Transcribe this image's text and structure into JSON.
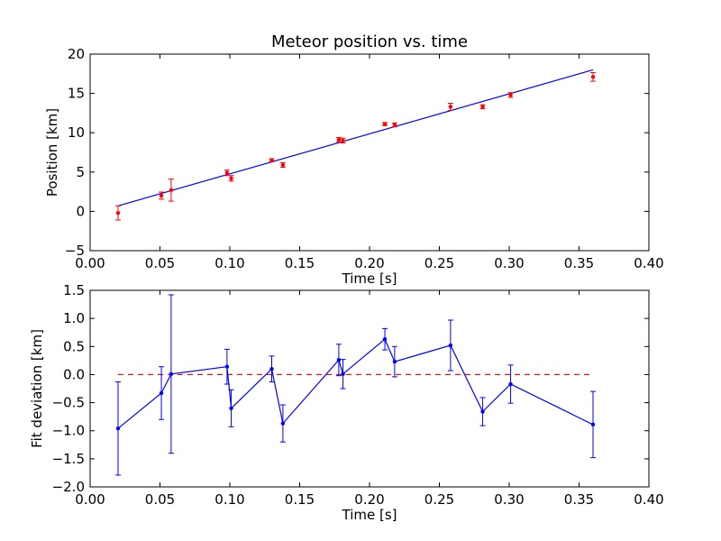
{
  "chart_data": [
    {
      "type": "scatter",
      "title": "Meteor position vs. time",
      "xlabel": "Time [s]",
      "ylabel": "Position [km]",
      "xlim": [
        0.0,
        0.4
      ],
      "ylim": [
        -5,
        20
      ],
      "xticks": [
        "0.00",
        "0.05",
        "0.10",
        "0.15",
        "0.20",
        "0.25",
        "0.30",
        "0.35",
        "0.40"
      ],
      "yticks": [
        "−5",
        "0",
        "5",
        "10",
        "15",
        "20"
      ],
      "xtick_values": [
        0.0,
        0.05,
        0.1,
        0.15,
        0.2,
        0.25,
        0.3,
        0.35,
        0.4
      ],
      "ytick_values": [
        -5,
        0,
        5,
        10,
        15,
        20
      ],
      "grid": false,
      "fit_line": {
        "x": [
          0.02,
          0.36
        ],
        "y": [
          0.7,
          18.0
        ],
        "color": "#0000ff"
      },
      "series": [
        {
          "marker_color": "#ff0000",
          "points": [
            {
              "x": 0.02,
              "y": -0.2,
              "err": 0.9
            },
            {
              "x": 0.051,
              "y": 2.0,
              "err": 0.45
            },
            {
              "x": 0.058,
              "y": 2.7,
              "err": 1.4
            },
            {
              "x": 0.098,
              "y": 4.9,
              "err": 0.35
            },
            {
              "x": 0.101,
              "y": 4.2,
              "err": 0.35
            },
            {
              "x": 0.13,
              "y": 6.5,
              "err": 0.2
            },
            {
              "x": 0.138,
              "y": 5.9,
              "err": 0.3
            },
            {
              "x": 0.178,
              "y": 9.1,
              "err": 0.3
            },
            {
              "x": 0.181,
              "y": 9.0,
              "err": 0.3
            },
            {
              "x": 0.211,
              "y": 11.1,
              "err": 0.2
            },
            {
              "x": 0.218,
              "y": 11.0,
              "err": 0.25
            },
            {
              "x": 0.258,
              "y": 13.3,
              "err": 0.45
            },
            {
              "x": 0.281,
              "y": 13.3,
              "err": 0.25
            },
            {
              "x": 0.301,
              "y": 14.8,
              "err": 0.3
            },
            {
              "x": 0.36,
              "y": 17.1,
              "err": 0.55
            }
          ]
        }
      ]
    },
    {
      "type": "line",
      "title": "",
      "xlabel": "Time [s]",
      "ylabel": "Fit deviation [km]",
      "xlim": [
        0.0,
        0.4
      ],
      "ylim": [
        -2.0,
        1.5
      ],
      "xticks": [
        "0.00",
        "0.05",
        "0.10",
        "0.15",
        "0.20",
        "0.25",
        "0.30",
        "0.35",
        "0.40"
      ],
      "yticks": [
        "−2.0",
        "−1.5",
        "−1.0",
        "−0.5",
        "0.0",
        "0.5",
        "1.0",
        "1.5"
      ],
      "xtick_values": [
        0.0,
        0.05,
        0.1,
        0.15,
        0.2,
        0.25,
        0.3,
        0.35,
        0.4
      ],
      "ytick_values": [
        -2.0,
        -1.5,
        -1.0,
        -0.5,
        0.0,
        0.5,
        1.0,
        1.5
      ],
      "grid": false,
      "reference_line": {
        "x": [
          0.02,
          0.36
        ],
        "y": [
          0.0,
          0.0
        ],
        "color": "#ff0000",
        "style": "dashed"
      },
      "series": [
        {
          "line_color": "#0000ff",
          "points": [
            {
              "x": 0.02,
              "y": -0.96,
              "err": 0.83
            },
            {
              "x": 0.051,
              "y": -0.33,
              "err": 0.47
            },
            {
              "x": 0.058,
              "y": 0.01,
              "err": 1.41
            },
            {
              "x": 0.098,
              "y": 0.14,
              "err": 0.31
            },
            {
              "x": 0.101,
              "y": -0.6,
              "err": 0.33
            },
            {
              "x": 0.13,
              "y": 0.1,
              "err": 0.23
            },
            {
              "x": 0.138,
              "y": -0.87,
              "err": 0.33
            },
            {
              "x": 0.178,
              "y": 0.26,
              "err": 0.28
            },
            {
              "x": 0.181,
              "y": 0.01,
              "err": 0.26
            },
            {
              "x": 0.211,
              "y": 0.63,
              "err": 0.19
            },
            {
              "x": 0.218,
              "y": 0.23,
              "err": 0.27
            },
            {
              "x": 0.258,
              "y": 0.52,
              "err": 0.45
            },
            {
              "x": 0.281,
              "y": -0.66,
              "err": 0.25
            },
            {
              "x": 0.301,
              "y": -0.17,
              "err": 0.34
            },
            {
              "x": 0.36,
              "y": -0.89,
              "err": 0.59
            }
          ]
        }
      ]
    }
  ]
}
